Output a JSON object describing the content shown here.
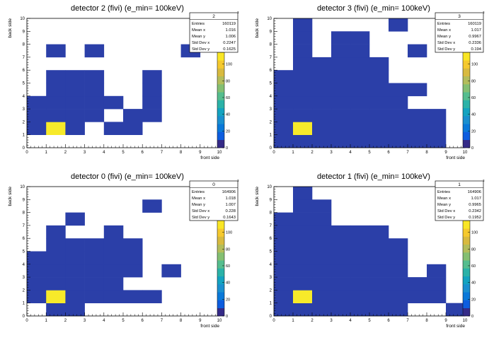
{
  "chart_data": [
    {
      "type": "heatmap",
      "title": "detector 2 (fivi) (e_min= 100keV)",
      "xlabel": "front side",
      "ylabel": "back side",
      "xlim": [
        0,
        10
      ],
      "ylim": [
        0,
        10
      ],
      "x_ticks": [
        "0",
        "1",
        "2",
        "3",
        "4",
        "5",
        "6",
        "7",
        "8",
        "9",
        "10"
      ],
      "y_ticks": [
        "0",
        "1",
        "2",
        "3",
        "4",
        "5",
        "6",
        "7",
        "8",
        "9",
        "10"
      ],
      "colorbar_ticks": [
        "0",
        "20",
        "40",
        "60",
        "80",
        "100"
      ],
      "colorbar_exponent": "3",
      "stats": {
        "name": "2",
        "rows": [
          {
            "label": "Entries",
            "value": "160119"
          },
          {
            "label": "Mean x",
            "value": "1.016"
          },
          {
            "label": "Mean y",
            "value": "1.006"
          },
          {
            "label": "Std Dev x",
            "value": "0.2247"
          },
          {
            "label": "Std Dev y",
            "value": "0.1625"
          }
        ]
      },
      "peak_cell": [
        1,
        1
      ],
      "cells": [
        [
          0,
          1
        ],
        [
          1,
          1
        ],
        [
          2,
          1
        ],
        [
          4,
          1
        ],
        [
          5,
          1
        ],
        [
          0,
          2
        ],
        [
          1,
          2
        ],
        [
          2,
          2
        ],
        [
          3,
          2
        ],
        [
          5,
          2
        ],
        [
          6,
          2
        ],
        [
          0,
          3
        ],
        [
          1,
          3
        ],
        [
          2,
          3
        ],
        [
          3,
          3
        ],
        [
          4,
          3
        ],
        [
          6,
          3
        ],
        [
          1,
          4
        ],
        [
          2,
          4
        ],
        [
          3,
          4
        ],
        [
          6,
          4
        ],
        [
          1,
          5
        ],
        [
          2,
          5
        ],
        [
          3,
          5
        ],
        [
          6,
          5
        ],
        [
          1,
          7
        ],
        [
          3,
          7
        ],
        [
          8,
          7
        ]
      ]
    },
    {
      "type": "heatmap",
      "title": "detector 3 (fivi) (e_min= 100keV)",
      "xlabel": "front side",
      "ylabel": "back side",
      "xlim": [
        0,
        10
      ],
      "ylim": [
        0,
        10
      ],
      "x_ticks": [
        "0",
        "1",
        "2",
        "3",
        "4",
        "5",
        "6",
        "7",
        "8",
        "9",
        "10"
      ],
      "y_ticks": [
        "0",
        "1",
        "2",
        "3",
        "4",
        "5",
        "6",
        "7",
        "8",
        "9",
        "10"
      ],
      "colorbar_ticks": [
        "0",
        "20",
        "40",
        "60",
        "80",
        "100"
      ],
      "colorbar_exponent": "3",
      "stats": {
        "name": "3",
        "rows": [
          {
            "label": "Entries",
            "value": "160119"
          },
          {
            "label": "Mean x",
            "value": "1.017"
          },
          {
            "label": "Mean y",
            "value": "0.9967"
          },
          {
            "label": "Std Dev x",
            "value": "0.2336"
          },
          {
            "label": "Std Dev y",
            "value": "0.194"
          }
        ]
      },
      "peak_cell": [
        1,
        1
      ],
      "cells": [
        [
          0,
          0
        ],
        [
          1,
          0
        ],
        [
          2,
          0
        ],
        [
          3,
          0
        ],
        [
          4,
          0
        ],
        [
          5,
          0
        ],
        [
          6,
          0
        ],
        [
          7,
          0
        ],
        [
          8,
          0
        ],
        [
          0,
          1
        ],
        [
          1,
          1
        ],
        [
          2,
          1
        ],
        [
          3,
          1
        ],
        [
          4,
          1
        ],
        [
          5,
          1
        ],
        [
          6,
          1
        ],
        [
          7,
          1
        ],
        [
          8,
          1
        ],
        [
          0,
          2
        ],
        [
          1,
          2
        ],
        [
          2,
          2
        ],
        [
          3,
          2
        ],
        [
          4,
          2
        ],
        [
          5,
          2
        ],
        [
          6,
          2
        ],
        [
          7,
          2
        ],
        [
          8,
          2
        ],
        [
          0,
          3
        ],
        [
          1,
          3
        ],
        [
          2,
          3
        ],
        [
          3,
          3
        ],
        [
          4,
          3
        ],
        [
          5,
          3
        ],
        [
          6,
          3
        ],
        [
          0,
          4
        ],
        [
          1,
          4
        ],
        [
          2,
          4
        ],
        [
          3,
          4
        ],
        [
          4,
          4
        ],
        [
          5,
          4
        ],
        [
          6,
          4
        ],
        [
          7,
          4
        ],
        [
          0,
          5
        ],
        [
          1,
          5
        ],
        [
          2,
          5
        ],
        [
          3,
          5
        ],
        [
          4,
          5
        ],
        [
          5,
          5
        ],
        [
          1,
          6
        ],
        [
          2,
          6
        ],
        [
          3,
          6
        ],
        [
          4,
          6
        ],
        [
          5,
          6
        ],
        [
          1,
          7
        ],
        [
          3,
          7
        ],
        [
          4,
          7
        ],
        [
          7,
          7
        ],
        [
          1,
          8
        ],
        [
          3,
          8
        ],
        [
          4,
          8
        ],
        [
          1,
          9
        ],
        [
          6,
          9
        ]
      ]
    },
    {
      "type": "heatmap",
      "title": "detector 0 (fivi) (e_min= 100keV)",
      "xlabel": "front side",
      "ylabel": "back side",
      "xlim": [
        0,
        10
      ],
      "ylim": [
        0,
        10
      ],
      "x_ticks": [
        "0",
        "1",
        "2",
        "3",
        "4",
        "5",
        "6",
        "7",
        "8",
        "9",
        "10"
      ],
      "y_ticks": [
        "0",
        "1",
        "2",
        "3",
        "4",
        "5",
        "6",
        "7",
        "8",
        "9",
        "10"
      ],
      "colorbar_ticks": [
        "0",
        "20",
        "40",
        "60",
        "80",
        "100"
      ],
      "colorbar_exponent": "3",
      "stats": {
        "name": "0",
        "rows": [
          {
            "label": "Entries",
            "value": "164906"
          },
          {
            "label": "Mean x",
            "value": "1.018"
          },
          {
            "label": "Mean y",
            "value": "1.007"
          },
          {
            "label": "Std Dev x",
            "value": "0.228"
          },
          {
            "label": "Std Dev y",
            "value": "0.1643"
          }
        ]
      },
      "peak_cell": [
        1,
        1
      ],
      "cells": [
        [
          1,
          0
        ],
        [
          2,
          0
        ],
        [
          0,
          1
        ],
        [
          1,
          1
        ],
        [
          2,
          1
        ],
        [
          3,
          1
        ],
        [
          4,
          1
        ],
        [
          5,
          1
        ],
        [
          6,
          1
        ],
        [
          0,
          2
        ],
        [
          1,
          2
        ],
        [
          2,
          2
        ],
        [
          3,
          2
        ],
        [
          4,
          2
        ],
        [
          0,
          3
        ],
        [
          1,
          3
        ],
        [
          2,
          3
        ],
        [
          3,
          3
        ],
        [
          4,
          3
        ],
        [
          5,
          3
        ],
        [
          7,
          3
        ],
        [
          0,
          4
        ],
        [
          1,
          4
        ],
        [
          2,
          4
        ],
        [
          3,
          4
        ],
        [
          4,
          4
        ],
        [
          5,
          4
        ],
        [
          1,
          5
        ],
        [
          2,
          5
        ],
        [
          3,
          5
        ],
        [
          4,
          5
        ],
        [
          5,
          5
        ],
        [
          1,
          6
        ],
        [
          4,
          6
        ],
        [
          2,
          7
        ],
        [
          6,
          8
        ]
      ]
    },
    {
      "type": "heatmap",
      "title": "detector 1 (fivi) (e_min= 100keV)",
      "xlabel": "front side",
      "ylabel": "back side",
      "xlim": [
        0,
        10
      ],
      "ylim": [
        0,
        10
      ],
      "x_ticks": [
        "0",
        "1",
        "2",
        "3",
        "4",
        "5",
        "6",
        "7",
        "8",
        "9",
        "10"
      ],
      "y_ticks": [
        "0",
        "1",
        "2",
        "3",
        "4",
        "5",
        "6",
        "7",
        "8",
        "9",
        "10"
      ],
      "colorbar_ticks": [
        "0",
        "20",
        "40",
        "60",
        "80",
        "100"
      ],
      "colorbar_exponent": "3",
      "stats": {
        "name": "1",
        "rows": [
          {
            "label": "Entries",
            "value": "164906"
          },
          {
            "label": "Mean x",
            "value": "1.017"
          },
          {
            "label": "Mean y",
            "value": "0.9965"
          },
          {
            "label": "Std Dev x",
            "value": "0.2342"
          },
          {
            "label": "Std Dev y",
            "value": "0.1952"
          }
        ]
      },
      "peak_cell": [
        1,
        1
      ],
      "cells": [
        [
          0,
          0
        ],
        [
          1,
          0
        ],
        [
          2,
          0
        ],
        [
          3,
          0
        ],
        [
          4,
          0
        ],
        [
          5,
          0
        ],
        [
          6,
          0
        ],
        [
          9,
          0
        ],
        [
          0,
          1
        ],
        [
          1,
          1
        ],
        [
          2,
          1
        ],
        [
          3,
          1
        ],
        [
          4,
          1
        ],
        [
          5,
          1
        ],
        [
          6,
          1
        ],
        [
          7,
          1
        ],
        [
          8,
          1
        ],
        [
          0,
          2
        ],
        [
          1,
          2
        ],
        [
          2,
          2
        ],
        [
          3,
          2
        ],
        [
          4,
          2
        ],
        [
          5,
          2
        ],
        [
          6,
          2
        ],
        [
          7,
          2
        ],
        [
          8,
          2
        ],
        [
          0,
          3
        ],
        [
          1,
          3
        ],
        [
          2,
          3
        ],
        [
          3,
          3
        ],
        [
          4,
          3
        ],
        [
          5,
          3
        ],
        [
          6,
          3
        ],
        [
          8,
          3
        ],
        [
          0,
          4
        ],
        [
          1,
          4
        ],
        [
          2,
          4
        ],
        [
          3,
          4
        ],
        [
          4,
          4
        ],
        [
          5,
          4
        ],
        [
          6,
          4
        ],
        [
          0,
          5
        ],
        [
          1,
          5
        ],
        [
          2,
          5
        ],
        [
          3,
          5
        ],
        [
          4,
          5
        ],
        [
          5,
          5
        ],
        [
          6,
          5
        ],
        [
          0,
          6
        ],
        [
          1,
          6
        ],
        [
          2,
          6
        ],
        [
          3,
          6
        ],
        [
          4,
          6
        ],
        [
          5,
          6
        ],
        [
          0,
          7
        ],
        [
          1,
          7
        ],
        [
          2,
          7
        ],
        [
          1,
          8
        ],
        [
          2,
          8
        ],
        [
          1,
          9
        ]
      ]
    }
  ],
  "colors": {
    "low": "#2b3fa8",
    "peak": "#f7ea2a",
    "axis": "#000000"
  },
  "colormap": [
    "#352a87",
    "#0d5ddf",
    "#0a79d9",
    "#1a8fcf",
    "#14a3c0",
    "#2bb2a8",
    "#55bd8e",
    "#84bf72",
    "#b3bd5b",
    "#d8ba3f",
    "#f5c92e",
    "#f9e625"
  ]
}
